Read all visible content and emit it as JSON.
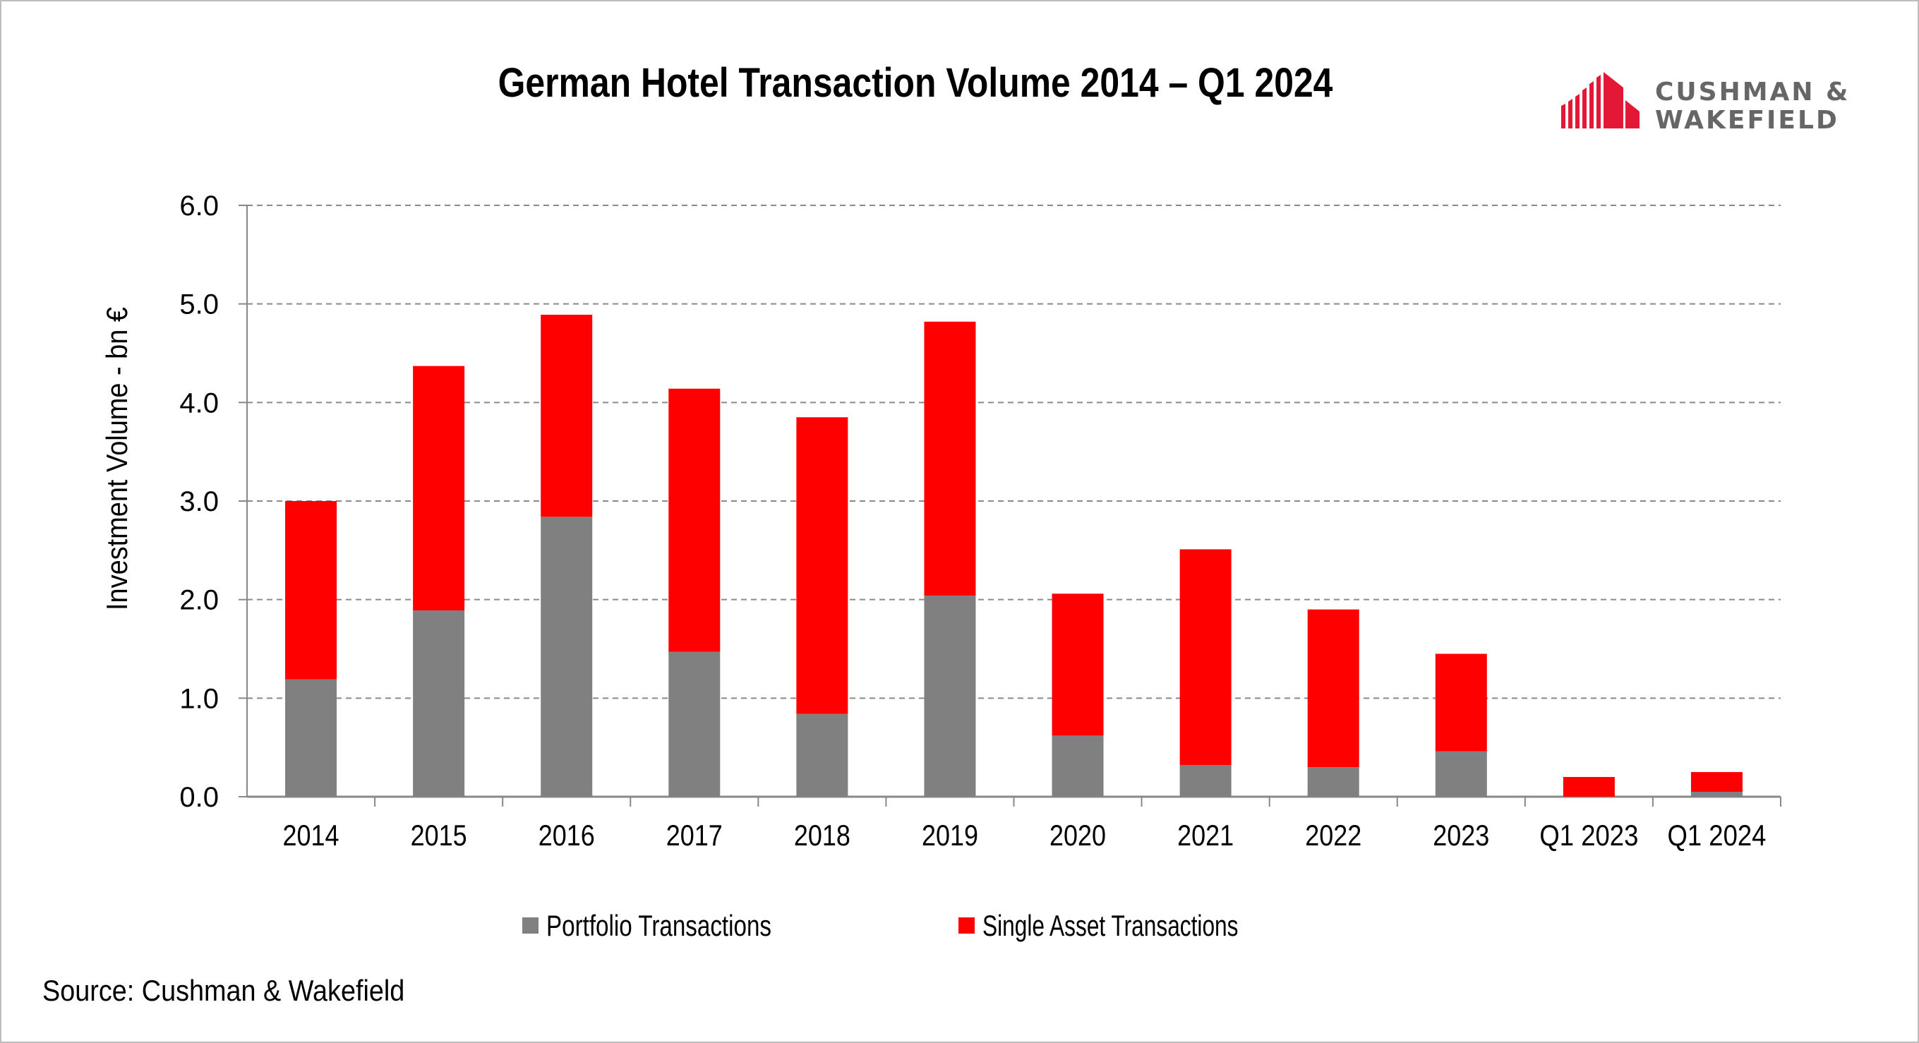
{
  "chart_data": {
    "type": "bar",
    "stacked": true,
    "title": "German Hotel Transaction Volume 2014 – Q1 2024",
    "xlabel": "",
    "ylabel": "Investment Volume - bn €",
    "ylim": [
      0,
      6
    ],
    "yticks": [
      "0.0",
      "1.0",
      "2.0",
      "3.0",
      "4.0",
      "5.0",
      "6.0"
    ],
    "grid": true,
    "legend": "bottom",
    "categories": [
      "2014",
      "2015",
      "2016",
      "2017",
      "2018",
      "2019",
      "2020",
      "2021",
      "2022",
      "2023",
      "Q1 2023",
      "Q1 2024"
    ],
    "series": [
      {
        "name": "Portfolio Transactions",
        "color": "#808080",
        "values": [
          1.19,
          1.89,
          2.84,
          1.47,
          0.84,
          2.04,
          0.62,
          0.32,
          0.3,
          0.46,
          0.0,
          0.05
        ]
      },
      {
        "name": "Single Asset Transactions",
        "color": "#ff0000",
        "values": [
          1.81,
          2.48,
          2.05,
          2.67,
          3.01,
          2.78,
          1.44,
          2.19,
          1.6,
          0.99,
          0.2,
          0.2
        ]
      }
    ]
  },
  "logo": {
    "line1": "CUSHMAN &",
    "line2": "WAKEFIELD"
  },
  "source": "Source: Cushman & Wakefield"
}
